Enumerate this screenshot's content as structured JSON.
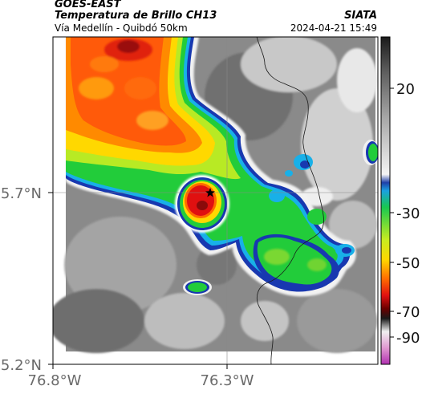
{
  "header": {
    "source": "GOES-EAST",
    "product": "Temperatura de Brillo CH13",
    "region": "Vía Medellín - Quibdó 50km",
    "agency": "SIATA",
    "timestamp": "2024-04-21 15:49"
  },
  "axes": {
    "lat_ticks": [
      "5.7°N",
      "5.2°N"
    ],
    "lon_ticks": [
      "76.8°W",
      "76.3°W"
    ]
  },
  "colorbar": {
    "ticks": [
      "20",
      "-30",
      "-50",
      "-70",
      "-90"
    ]
  },
  "marker": {
    "icon": "star-icon"
  }
}
